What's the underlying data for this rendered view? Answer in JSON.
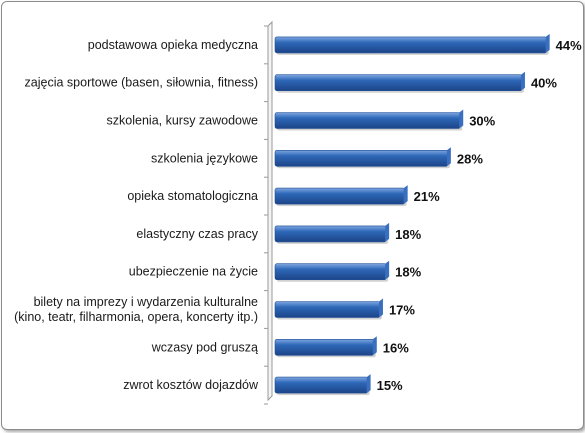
{
  "chart_data": {
    "type": "bar",
    "orientation": "horizontal",
    "categories": [
      [
        "podstawowa opieka medyczna"
      ],
      [
        "zajęcia sportowe (basen, siłownia, fitness)"
      ],
      [
        "szkolenia, kursy zawodowe"
      ],
      [
        "szkolenia językowe"
      ],
      [
        "opieka stomatologiczna"
      ],
      [
        "elastyczny czas pracy"
      ],
      [
        "ubezpieczenie na życie"
      ],
      [
        "bilety na imprezy i wydarzenia kulturalne",
        "(kino, teatr, filharmonia, opera, koncerty itp.)"
      ],
      [
        "wczasy pod gruszą"
      ],
      [
        "zwrot kosztów dojazdów"
      ]
    ],
    "values": [
      44,
      40,
      30,
      28,
      21,
      18,
      18,
      17,
      16,
      15
    ],
    "value_labels": [
      "44%",
      "40%",
      "30%",
      "28%",
      "21%",
      "18%",
      "18%",
      "17%",
      "16%",
      "15%"
    ],
    "xlim": [
      0,
      46
    ],
    "bar_color": "#2e68b8",
    "grid": false,
    "legend": "none",
    "title": "",
    "xlabel": "",
    "ylabel": ""
  }
}
